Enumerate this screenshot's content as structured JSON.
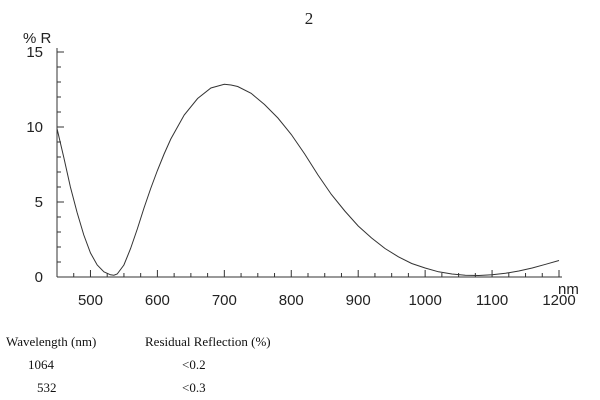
{
  "chart_data": {
    "type": "line",
    "title": "2",
    "xlabel": "nm",
    "ylabel": "% R",
    "xlim": [
      450,
      1200
    ],
    "ylim": [
      0,
      15
    ],
    "xticks": [
      500,
      600,
      700,
      800,
      900,
      1000,
      1100,
      1200
    ],
    "yticks": [
      0,
      5,
      10,
      15
    ],
    "grid": false,
    "series": [
      {
        "x": [
          450,
          460,
          470,
          480,
          490,
          500,
          510,
          520,
          530,
          535,
          540,
          550,
          560,
          570,
          580,
          590,
          600,
          610,
          620,
          640,
          660,
          680,
          700,
          710,
          720,
          740,
          760,
          780,
          800,
          820,
          840,
          860,
          880,
          900,
          920,
          940,
          960,
          980,
          1000,
          1020,
          1040,
          1060,
          1080,
          1100,
          1120,
          1140,
          1160,
          1180,
          1200
        ],
        "y": [
          9.9,
          8.0,
          6.0,
          4.3,
          2.8,
          1.6,
          0.8,
          0.35,
          0.15,
          0.12,
          0.2,
          0.8,
          1.9,
          3.2,
          4.6,
          5.9,
          7.1,
          8.2,
          9.2,
          10.8,
          11.9,
          12.6,
          12.85,
          12.8,
          12.7,
          12.25,
          11.5,
          10.6,
          9.5,
          8.2,
          6.8,
          5.5,
          4.4,
          3.4,
          2.6,
          1.9,
          1.35,
          0.9,
          0.6,
          0.35,
          0.2,
          0.12,
          0.1,
          0.15,
          0.25,
          0.4,
          0.6,
          0.85,
          1.1
        ]
      }
    ]
  },
  "table": {
    "headers": [
      "Wavelength (nm)",
      "Residual Reflection (%)"
    ],
    "rows": [
      [
        "1064",
        "<0.2"
      ],
      [
        "532",
        "<0.3"
      ]
    ]
  }
}
